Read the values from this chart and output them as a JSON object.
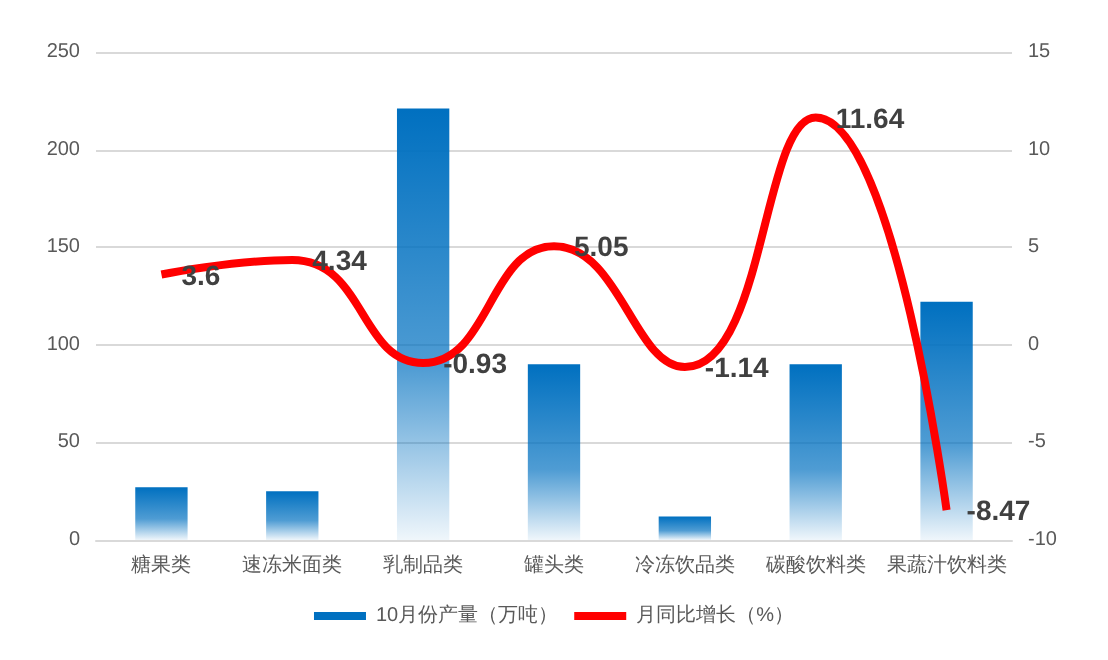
{
  "chart_data": {
    "type": "bar",
    "categories": [
      "糖果类",
      "速冻米面类",
      "乳制品类",
      "罐头类",
      "冷冻饮品类",
      "碳酸饮料类",
      "果蔬汁饮料类"
    ],
    "series": [
      {
        "name": "10月份产量（万吨）",
        "color": "#0070c0",
        "values": [
          27,
          25,
          221,
          90,
          12,
          90,
          122
        ]
      },
      {
        "name": "月同比增长（%）",
        "type": "line",
        "axis": "y2",
        "color": "#ff0000",
        "values": [
          3.6,
          4.34,
          -0.93,
          5.05,
          -1.14,
          11.64,
          -8.47
        ],
        "data_labels": true,
        "marker": "none"
      }
    ],
    "ylim": [
      0,
      250
    ],
    "yticks": [
      0,
      50,
      100,
      150,
      200,
      250
    ],
    "y2lim": [
      -10,
      15
    ],
    "y2ticks": [
      -10,
      -5,
      0,
      5,
      10,
      15
    ],
    "grid": "y",
    "legend": "bottom"
  }
}
